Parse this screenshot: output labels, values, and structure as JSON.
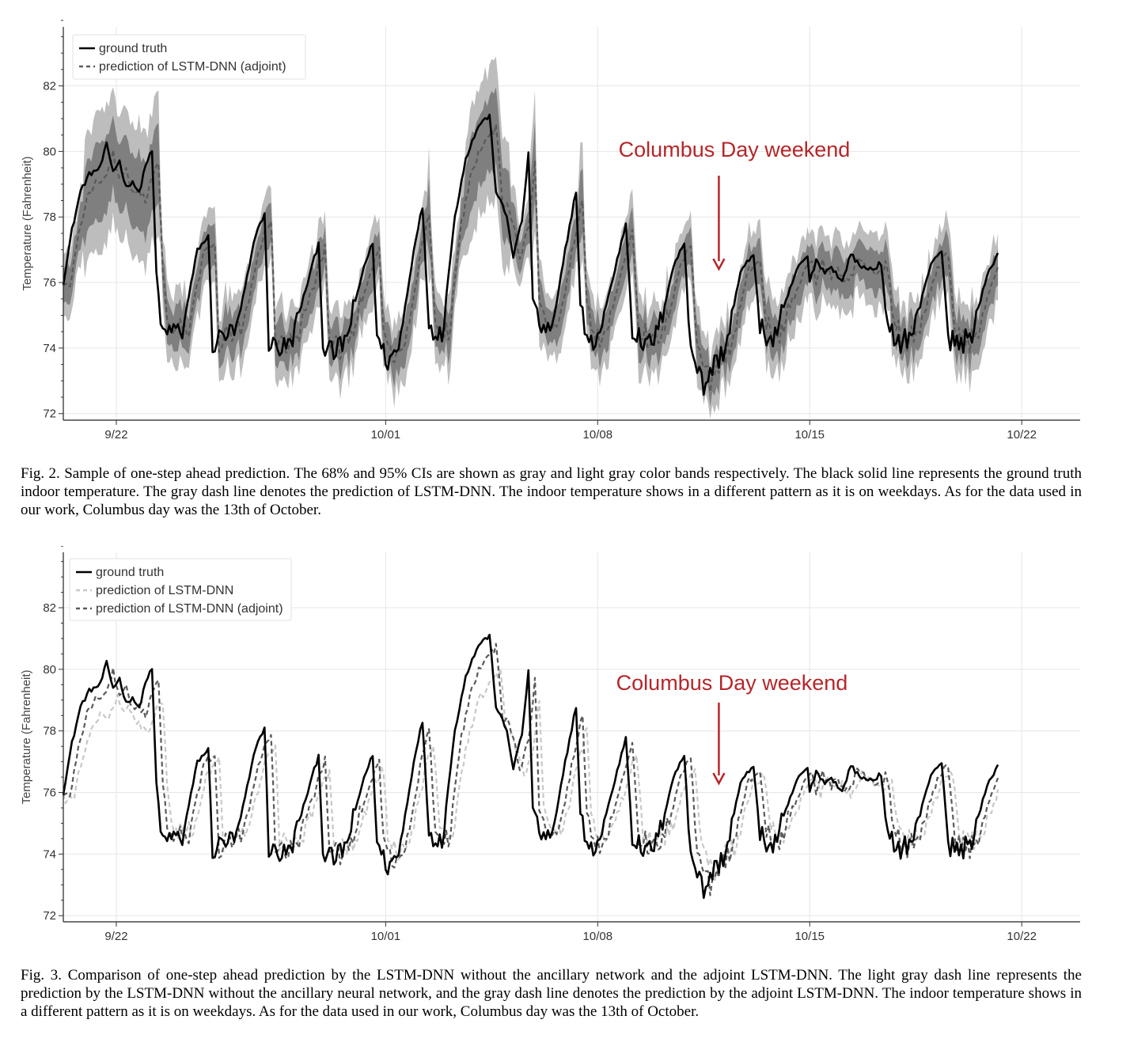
{
  "figures": [
    {
      "caption": "Fig. 2.  Sample of one-step ahead prediction. The 68% and 95% CIs are shown as gray and light gray color bands respectively. The black solid line represents the ground truth indoor temperature. The gray dash line denotes the prediction of LSTM-DNN. The indoor temperature shows in a different pattern as it is on weekdays. As for the data used in our work, Columbus day was the 13th of October.",
      "annotation": "Columbus Day weekend",
      "ylabel": "Temperature (Fahrenheit)",
      "legend": [
        "ground truth",
        "prediction of LSTM-DNN (adjoint)"
      ]
    },
    {
      "caption": "Fig. 3.  Comparison of one-step ahead prediction by the LSTM-DNN without the ancillary network and the adjoint LSTM-DNN. The light gray dash line represents the prediction by the LSTM-DNN without the ancillary neural network, and the gray dash line denotes the prediction by the adjoint LSTM-DNN. The indoor temperature shows in a different pattern as it is on weekdays. As for the data used in our work, Columbus day was the 13th of October.",
      "annotation": "Columbus Day weekend",
      "ylabel": "Temperature (Fahrenheit)",
      "legend": [
        "ground truth",
        "prediction of LSTM-DNN",
        "prediction of LSTM-DNN (adjoint)"
      ]
    }
  ],
  "colors": {
    "ground_truth": "#000000",
    "adjoint": "#5a5a5a",
    "plain": "#c8c8c8",
    "ci68": "#7f7f7f",
    "ci95": "#bdbdbd",
    "annotation": "#b5262a"
  },
  "chart_data": [
    {
      "type": "line",
      "x_unit": "days since 9/20 00:00 (date axis)",
      "xlim": [
        19.3,
        66.3
      ],
      "ylim": [
        71.8,
        83.8
      ],
      "yticks": [
        72,
        74,
        76,
        78,
        80,
        82
      ],
      "xticks": [
        {
          "x": 21.75,
          "label": "9/22"
        },
        {
          "x": 34.2,
          "label": "10/01"
        },
        {
          "x": 44.0,
          "label": "10/08"
        },
        {
          "x": 53.8,
          "label": "10/15"
        },
        {
          "x": 63.6,
          "label": "10/22"
        }
      ],
      "annotation": {
        "text": "Columbus Day weekend",
        "at": [
          49.6,
          76.2
        ]
      },
      "ylabel": "Temperature (Fahrenheit)",
      "grid": true,
      "legend_position": "top-left",
      "bands": [
        "68% CI",
        "95% CI"
      ],
      "series": [
        {
          "name": "ground truth",
          "style": "solid",
          "color": "#000000"
        },
        {
          "name": "prediction of LSTM-DNN (adjoint)",
          "style": "dash",
          "color": "#5a5a5a"
        }
      ],
      "keypoints": [
        [
          19.3,
          76.0
        ],
        [
          19.7,
          77.6
        ],
        [
          20.1,
          78.8
        ],
        [
          20.5,
          79.3
        ],
        [
          21.0,
          79.5
        ],
        [
          21.3,
          80.2
        ],
        [
          21.6,
          79.4
        ],
        [
          21.9,
          79.7
        ],
        [
          22.2,
          78.9
        ],
        [
          22.5,
          79.1
        ],
        [
          22.8,
          78.7
        ],
        [
          23.1,
          79.6
        ],
        [
          23.4,
          80.0
        ],
        [
          23.6,
          76.3
        ],
        [
          23.9,
          74.3
        ],
        [
          24.3,
          74.6
        ],
        [
          24.8,
          74.5
        ],
        [
          25.5,
          77.0
        ],
        [
          26.0,
          77.4
        ],
        [
          26.2,
          74.1
        ],
        [
          26.7,
          74.4
        ],
        [
          27.3,
          74.5
        ],
        [
          28.2,
          77.5
        ],
        [
          28.6,
          78.1
        ],
        [
          28.8,
          74.2
        ],
        [
          29.3,
          74.0
        ],
        [
          29.8,
          74.1
        ],
        [
          30.8,
          76.5
        ],
        [
          31.1,
          77.2
        ],
        [
          31.3,
          74.1
        ],
        [
          31.8,
          73.8
        ],
        [
          32.4,
          74.3
        ],
        [
          33.2,
          76.5
        ],
        [
          33.6,
          77.2
        ],
        [
          33.8,
          74.3
        ],
        [
          34.3,
          73.6
        ],
        [
          34.8,
          74.0
        ],
        [
          35.6,
          77.4
        ],
        [
          35.9,
          78.3
        ],
        [
          36.2,
          74.7
        ],
        [
          36.8,
          74.4
        ],
        [
          37.4,
          78.0
        ],
        [
          37.9,
          79.8
        ],
        [
          38.5,
          80.8
        ],
        [
          39.0,
          81.1
        ],
        [
          39.3,
          78.8
        ],
        [
          39.8,
          78.0
        ],
        [
          40.1,
          76.8
        ],
        [
          40.5,
          77.9
        ],
        [
          40.8,
          79.9
        ],
        [
          41.0,
          75.5
        ],
        [
          41.4,
          74.6
        ],
        [
          41.9,
          74.5
        ],
        [
          42.5,
          77.0
        ],
        [
          43.0,
          78.8
        ],
        [
          43.2,
          75.3
        ],
        [
          43.6,
          74.0
        ],
        [
          44.1,
          74.5
        ],
        [
          44.8,
          76.4
        ],
        [
          45.3,
          77.8
        ],
        [
          45.6,
          74.6
        ],
        [
          46.2,
          74.0
        ],
        [
          46.8,
          74.5
        ],
        [
          47.5,
          76.5
        ],
        [
          48.0,
          77.2
        ],
        [
          48.3,
          74.1
        ],
        [
          48.9,
          72.8
        ],
        [
          49.3,
          73.4
        ],
        [
          49.9,
          74.0
        ],
        [
          50.6,
          76.3
        ],
        [
          51.2,
          76.9
        ],
        [
          51.5,
          74.6
        ],
        [
          52.1,
          74.2
        ],
        [
          52.6,
          75.2
        ],
        [
          53.2,
          76.4
        ],
        [
          53.7,
          76.8
        ],
        [
          53.8,
          76.0
        ],
        [
          54.1,
          76.7
        ],
        [
          54.5,
          76.3
        ],
        [
          54.8,
          76.5
        ],
        [
          55.3,
          76.0
        ],
        [
          55.7,
          76.9
        ],
        [
          56.1,
          76.5
        ],
        [
          56.7,
          76.4
        ],
        [
          57.1,
          76.6
        ],
        [
          57.4,
          74.5
        ],
        [
          58.0,
          74.2
        ],
        [
          58.6,
          74.5
        ],
        [
          59.4,
          76.6
        ],
        [
          59.9,
          77.0
        ],
        [
          60.2,
          74.3
        ],
        [
          60.8,
          74.1
        ],
        [
          61.3,
          74.5
        ],
        [
          62.0,
          76.2
        ],
        [
          62.5,
          76.9
        ]
      ]
    },
    {
      "type": "line",
      "x_unit": "days since 9/20 00:00 (date axis)",
      "xlim": [
        19.3,
        66.3
      ],
      "ylim": [
        71.8,
        83.8
      ],
      "yticks": [
        72,
        74,
        76,
        78,
        80,
        82
      ],
      "xticks": [
        {
          "x": 21.75,
          "label": "9/22"
        },
        {
          "x": 34.2,
          "label": "10/01"
        },
        {
          "x": 44.0,
          "label": "10/08"
        },
        {
          "x": 53.8,
          "label": "10/15"
        },
        {
          "x": 63.6,
          "label": "10/22"
        }
      ],
      "annotation": {
        "text": "Columbus Day weekend",
        "at": [
          49.6,
          76.2
        ]
      },
      "ylabel": "Temperature (Fahrenheit)",
      "grid": true,
      "legend_position": "top-left",
      "series": [
        {
          "name": "ground truth",
          "style": "solid",
          "color": "#000000"
        },
        {
          "name": "prediction of LSTM-DNN",
          "style": "dash",
          "color": "#c8c8c8"
        },
        {
          "name": "prediction of LSTM-DNN (adjoint)",
          "style": "dash",
          "color": "#5a5a5a"
        }
      ],
      "keypoints": [
        [
          19.3,
          76.0
        ],
        [
          19.7,
          77.6
        ],
        [
          20.1,
          78.8
        ],
        [
          20.5,
          79.3
        ],
        [
          21.0,
          79.5
        ],
        [
          21.3,
          80.2
        ],
        [
          21.6,
          79.4
        ],
        [
          21.9,
          79.7
        ],
        [
          22.2,
          78.9
        ],
        [
          22.5,
          79.1
        ],
        [
          22.8,
          78.7
        ],
        [
          23.1,
          79.6
        ],
        [
          23.4,
          80.0
        ],
        [
          23.6,
          76.3
        ],
        [
          23.9,
          74.3
        ],
        [
          24.3,
          74.6
        ],
        [
          24.8,
          74.5
        ],
        [
          25.5,
          77.0
        ],
        [
          26.0,
          77.4
        ],
        [
          26.2,
          74.1
        ],
        [
          26.7,
          74.4
        ],
        [
          27.3,
          74.5
        ],
        [
          28.2,
          77.5
        ],
        [
          28.6,
          78.1
        ],
        [
          28.8,
          74.2
        ],
        [
          29.3,
          74.0
        ],
        [
          29.8,
          74.1
        ],
        [
          30.8,
          76.5
        ],
        [
          31.1,
          77.2
        ],
        [
          31.3,
          74.1
        ],
        [
          31.8,
          73.8
        ],
        [
          32.4,
          74.3
        ],
        [
          33.2,
          76.5
        ],
        [
          33.6,
          77.2
        ],
        [
          33.8,
          74.3
        ],
        [
          34.3,
          73.6
        ],
        [
          34.8,
          74.0
        ],
        [
          35.6,
          77.4
        ],
        [
          35.9,
          78.3
        ],
        [
          36.2,
          74.7
        ],
        [
          36.8,
          74.4
        ],
        [
          37.4,
          78.0
        ],
        [
          37.9,
          79.8
        ],
        [
          38.5,
          80.8
        ],
        [
          39.0,
          81.1
        ],
        [
          39.3,
          78.8
        ],
        [
          39.8,
          78.0
        ],
        [
          40.1,
          76.8
        ],
        [
          40.5,
          77.9
        ],
        [
          40.8,
          79.9
        ],
        [
          41.0,
          75.5
        ],
        [
          41.4,
          74.6
        ],
        [
          41.9,
          74.5
        ],
        [
          42.5,
          77.0
        ],
        [
          43.0,
          78.8
        ],
        [
          43.2,
          75.3
        ],
        [
          43.6,
          74.0
        ],
        [
          44.1,
          74.5
        ],
        [
          44.8,
          76.4
        ],
        [
          45.3,
          77.8
        ],
        [
          45.6,
          74.6
        ],
        [
          46.2,
          74.0
        ],
        [
          46.8,
          74.5
        ],
        [
          47.5,
          76.5
        ],
        [
          48.0,
          77.2
        ],
        [
          48.3,
          74.1
        ],
        [
          48.9,
          72.8
        ],
        [
          49.3,
          73.4
        ],
        [
          49.9,
          74.0
        ],
        [
          50.6,
          76.3
        ],
        [
          51.2,
          76.9
        ],
        [
          51.5,
          74.6
        ],
        [
          52.1,
          74.2
        ],
        [
          52.6,
          75.2
        ],
        [
          53.2,
          76.4
        ],
        [
          53.7,
          76.8
        ],
        [
          53.8,
          76.0
        ],
        [
          54.1,
          76.7
        ],
        [
          54.5,
          76.3
        ],
        [
          54.8,
          76.5
        ],
        [
          55.3,
          76.0
        ],
        [
          55.7,
          76.9
        ],
        [
          56.1,
          76.5
        ],
        [
          56.7,
          76.4
        ],
        [
          57.1,
          76.6
        ],
        [
          57.4,
          74.5
        ],
        [
          58.0,
          74.2
        ],
        [
          58.6,
          74.5
        ],
        [
          59.4,
          76.6
        ],
        [
          59.9,
          77.0
        ],
        [
          60.2,
          74.3
        ],
        [
          60.8,
          74.1
        ],
        [
          61.3,
          74.5
        ],
        [
          62.0,
          76.2
        ],
        [
          62.5,
          76.9
        ]
      ]
    }
  ]
}
